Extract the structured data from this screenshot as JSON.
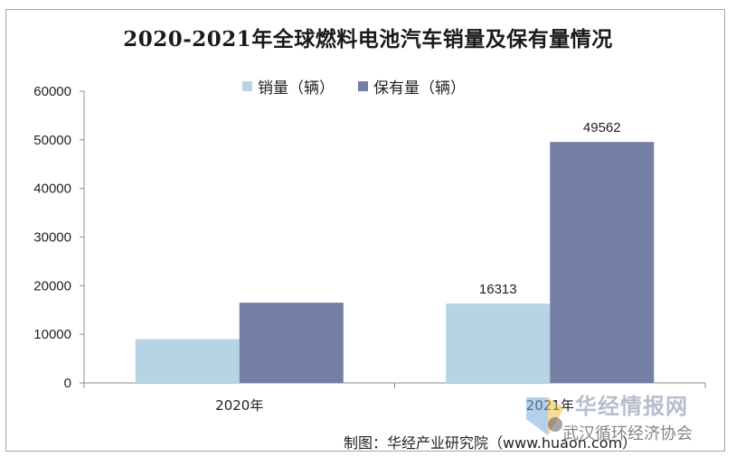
{
  "chart_data": {
    "type": "bar",
    "title": "2020-2021年全球燃料电池汽车销量及保有量情况",
    "categories": [
      "2020年",
      "2021年"
    ],
    "series": [
      {
        "name": "销量（辆）",
        "values": [
          9000,
          16313
        ],
        "color": "#b7d4e4"
      },
      {
        "name": "保有量（辆）",
        "values": [
          16500,
          49562
        ],
        "color": "#737fa3"
      }
    ],
    "data_labels": [
      {
        "series": 0,
        "category": 1,
        "text": "16313"
      },
      {
        "series": 1,
        "category": 1,
        "text": "49562"
      }
    ],
    "ylim": [
      0,
      60000
    ],
    "yticks": [
      "0",
      "10000",
      "20000",
      "30000",
      "40000",
      "50000",
      "60000"
    ],
    "xlabel": "",
    "ylabel": "",
    "grid": false,
    "legend_position": "top"
  },
  "source_note": "制图：华经产业研究院（www.huaon.com）",
  "watermark": {
    "line1": "华经情报网",
    "line2": "武汉循环经济协会"
  }
}
